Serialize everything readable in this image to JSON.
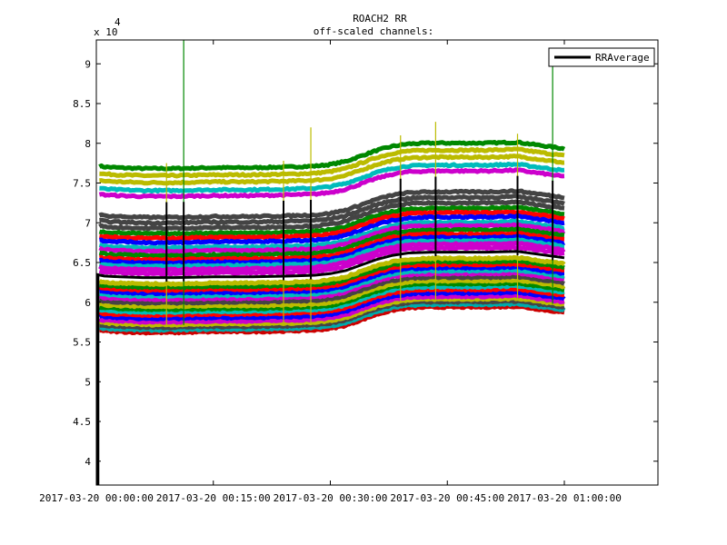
{
  "chart_data": {
    "type": "line",
    "title": "ROACH2 RR",
    "subtitle": "off-scaled channels:",
    "xlabel": "",
    "ylabel": "",
    "y_multiplier_base": "x 10",
    "y_multiplier_exp": "4",
    "x_tick_labels": [
      "2017-03-20 00:00:00",
      "2017-03-20 00:15:00",
      "2017-03-20 00:30:00",
      "2017-03-20 00:45:00",
      "2017-03-20 01:00:00"
    ],
    "x_tick_minutes": [
      0,
      15,
      30,
      45,
      60
    ],
    "x_range_minutes": [
      0,
      72
    ],
    "data_end_minutes": 60,
    "y_ticks": [
      4,
      4.5,
      5,
      5.5,
      6,
      6.5,
      7,
      7.5,
      8,
      8.5,
      9
    ],
    "y_tick_labels": [
      "4",
      "4.5",
      "5",
      "5.5",
      "6",
      "6.5",
      "7",
      "7.5",
      "8",
      "8.5",
      "9"
    ],
    "ylim": [
      3.7,
      9.3
    ],
    "grid": false,
    "legend": {
      "placement": "top-right",
      "entries": [
        "RRAverage"
      ]
    },
    "series": [
      {
        "name": "RRAverage",
        "color": "#000000",
        "x_minutes": [
          0,
          1,
          3,
          6,
          10,
          15,
          20,
          25,
          28,
          30,
          32,
          34,
          36,
          38,
          40,
          43,
          46,
          50,
          54,
          57,
          60
        ],
        "y": [
          6.35,
          6.33,
          6.32,
          6.31,
          6.31,
          6.32,
          6.32,
          6.33,
          6.34,
          6.36,
          6.4,
          6.47,
          6.54,
          6.59,
          6.62,
          6.63,
          6.63,
          6.63,
          6.64,
          6.6,
          6.56
        ]
      }
    ],
    "channel_offsets": [
      -0.76,
      -0.72,
      -0.68,
      -0.64,
      -0.6,
      -0.55,
      -0.5,
      -0.46,
      -0.42,
      -0.38,
      -0.33,
      -0.28,
      -0.24,
      -0.2,
      -0.16,
      -0.12,
      -0.08,
      0.05,
      0.1,
      0.14,
      0.18,
      0.22,
      0.27,
      0.32,
      0.36,
      0.42,
      0.47,
      0.52,
      0.58,
      0.64,
      0.7,
      0.76,
      0.92,
      0.98,
      1.06,
      1.13,
      1.2
    ],
    "channel_colors": [
      "#cc0000",
      "#00aaaa",
      "#444444",
      "#bbbb00",
      "#cc00cc",
      "#0000ff",
      "#ff0000",
      "#00bbbb",
      "#008800",
      "#bbbb00",
      "#444444",
      "#cc00cc",
      "#00bbbb",
      "#0000ff",
      "#ff0000",
      "#008800",
      "#bbbb00",
      "#cc00cc",
      "#cc00cc",
      "#00bbbb",
      "#0000ff",
      "#ff0000",
      "#008800",
      "#cc00cc",
      "#00bbbb",
      "#0000ff",
      "#ff0000",
      "#008800",
      "#444444",
      "#444444",
      "#444444",
      "#ffffff",
      "#cc00cc",
      "#00bbbb",
      "#bbbb00",
      "#bbbb00",
      "#008800"
    ],
    "spikes_minutes": [
      9,
      11.2,
      24,
      27.5,
      39,
      43.5,
      54,
      58.5
    ],
    "spike_colors": [
      "#bbbb00",
      "#008800",
      "#bbbb00",
      "#bbbb00",
      "#bbbb00",
      "#bbbb00",
      "#bbbb00",
      "#008800"
    ],
    "spike_peaks": [
      7.75,
      9.3,
      7.78,
      8.2,
      8.1,
      8.27,
      8.12,
      9.1
    ]
  }
}
